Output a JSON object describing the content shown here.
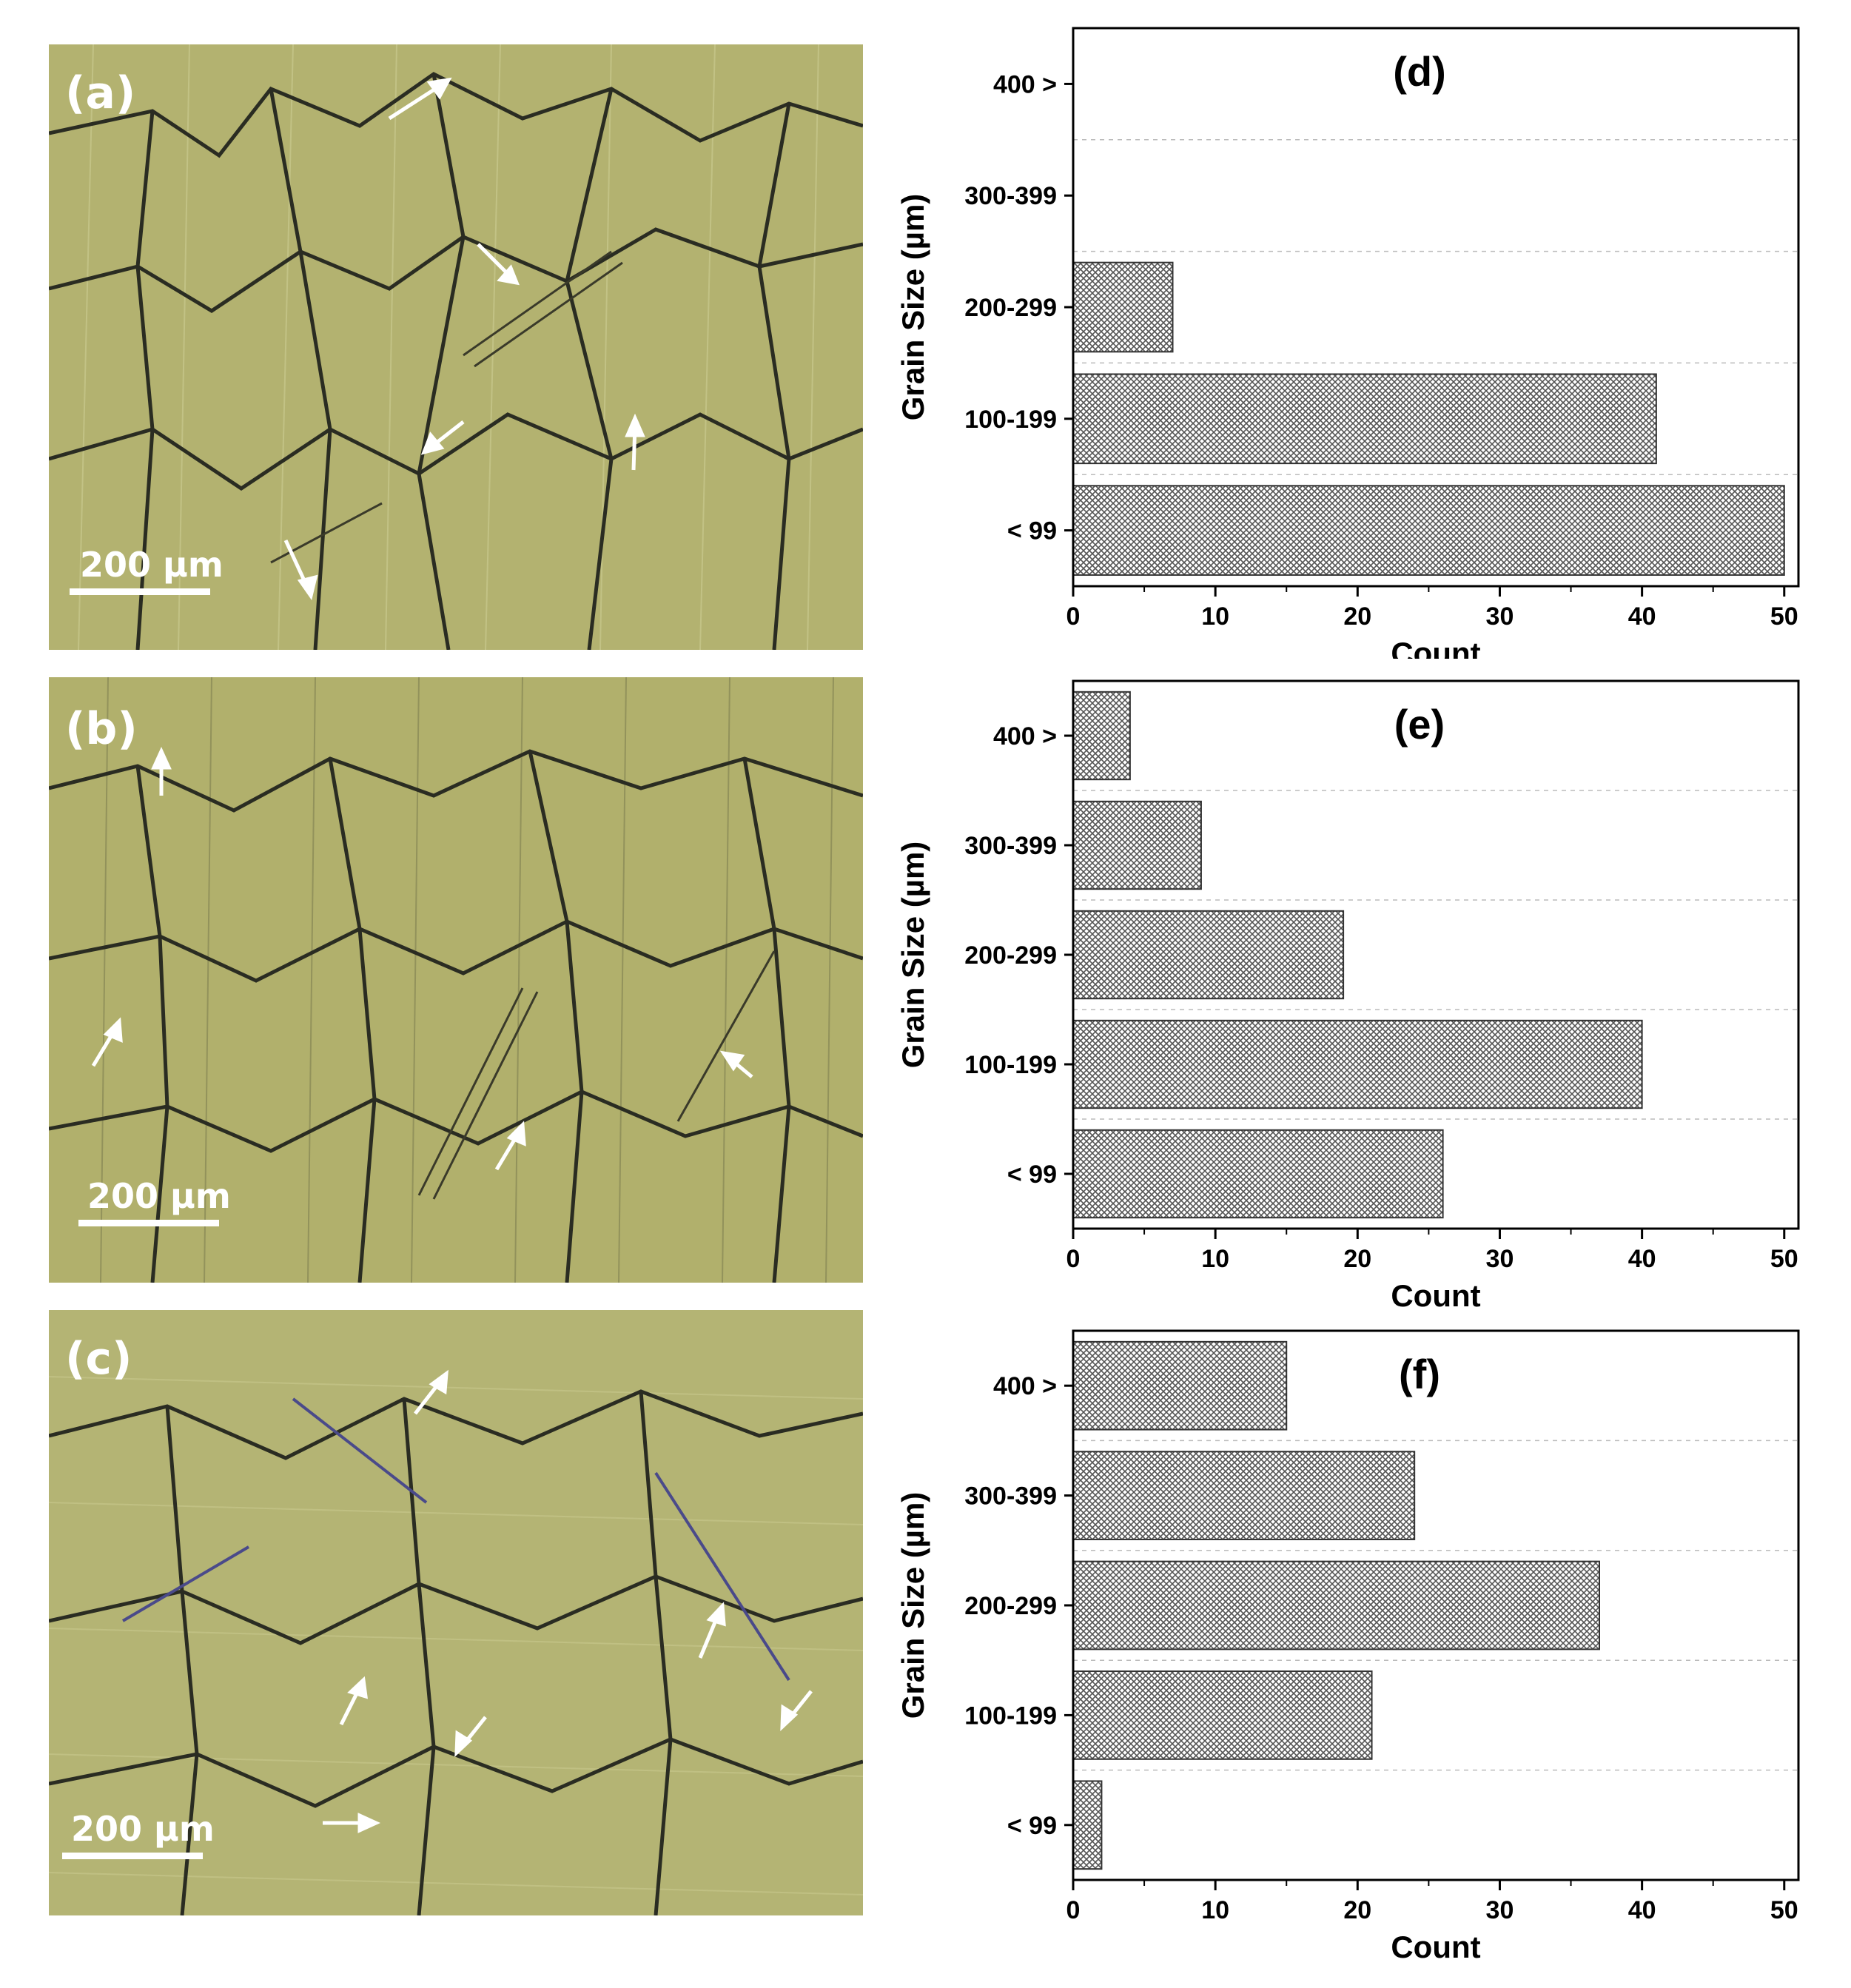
{
  "micrographs": [
    {
      "label": "(a)",
      "scale": "200 µm"
    },
    {
      "label": "(b)",
      "scale": "200 µm"
    },
    {
      "label": "(c)",
      "scale": "200 µm"
    }
  ],
  "colors": {
    "micrograph": "#b3b270",
    "grain_boundary": "#2a2c22",
    "bar_fill": "#8a8a8a",
    "gridline": "#bbbbbb"
  },
  "chart_data": [
    {
      "type": "bar",
      "orientation": "horizontal",
      "panel": "(d)",
      "categories": [
        "< 99",
        "100-199",
        "200-299",
        "300-399",
        "400 >"
      ],
      "values": [
        50,
        41,
        7,
        0,
        0
      ],
      "xlabel": "Count",
      "ylabel": "Grain Size (µm)",
      "xlim": [
        0,
        51
      ],
      "xticks": [
        "0",
        "10",
        "20",
        "30",
        "40",
        "50"
      ],
      "grid": "horizontal dashed"
    },
    {
      "type": "bar",
      "orientation": "horizontal",
      "panel": "(e)",
      "categories": [
        "< 99",
        "100-199",
        "200-299",
        "300-399",
        "400 >"
      ],
      "values": [
        26,
        40,
        19,
        9,
        4
      ],
      "xlabel": "Count",
      "ylabel": "Grain Size (µm)",
      "xlim": [
        0,
        51
      ],
      "xticks": [
        "0",
        "10",
        "20",
        "30",
        "40",
        "50"
      ],
      "grid": "horizontal dashed"
    },
    {
      "type": "bar",
      "orientation": "horizontal",
      "panel": "(f)",
      "categories": [
        "< 99",
        "100-199",
        "200-299",
        "300-399",
        "400 >"
      ],
      "values": [
        2,
        21,
        37,
        24,
        15
      ],
      "xlabel": "Count",
      "ylabel": "Grain Size (µm)",
      "xlim": [
        0,
        51
      ],
      "xticks": [
        "0",
        "10",
        "20",
        "30",
        "40",
        "50"
      ],
      "grid": "horizontal dashed"
    }
  ]
}
